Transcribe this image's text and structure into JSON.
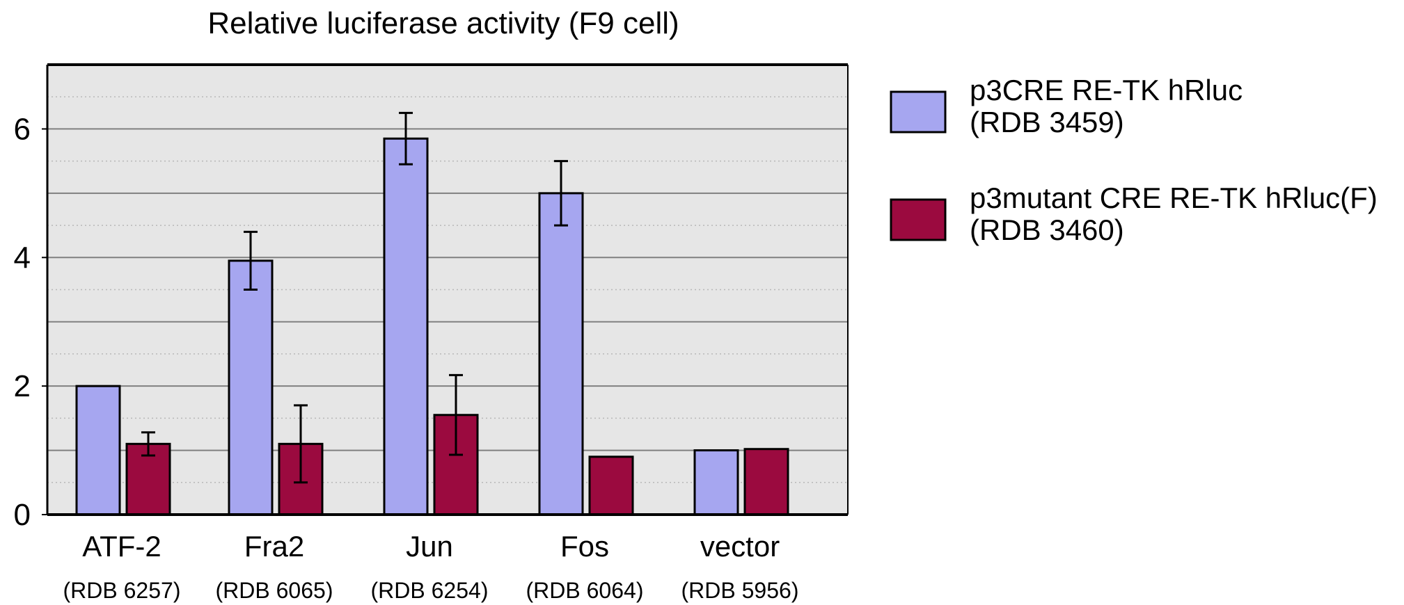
{
  "chart_data": {
    "type": "bar",
    "title": "Relative luciferase activity (F9 cell)",
    "xlabel": "",
    "ylabel": "",
    "ylim": [
      0,
      7
    ],
    "yticks": [
      0,
      2,
      4,
      6
    ],
    "grid": true,
    "legend_position": "right",
    "categories": [
      "ATF-2",
      "Fra2",
      "Jun",
      "Fos",
      "vector"
    ],
    "category_sublabels": [
      "(RDB 6257)",
      "(RDB 6065)",
      "(RDB 6254)",
      "(RDB 6064)",
      "(RDB 5956)"
    ],
    "series": [
      {
        "name": "p3CRE RE-TK hRluc",
        "name_line2": "(RDB 3459)",
        "color": "#A6A6F0",
        "values": [
          2.0,
          3.95,
          5.85,
          5.0,
          1.0
        ],
        "errors": [
          0.0,
          0.45,
          0.4,
          0.5,
          0.0
        ]
      },
      {
        "name": "p3mutant CRE RE-TK hRluc(F)",
        "name_line2": "(RDB 3460)",
        "color": "#9B0A3F",
        "values": [
          1.1,
          1.1,
          1.55,
          0.9,
          1.02
        ],
        "errors": [
          0.18,
          0.6,
          0.62,
          0.0,
          0.0
        ]
      }
    ],
    "plot_background": "#E6E6E6",
    "grid_color": "#808080"
  }
}
